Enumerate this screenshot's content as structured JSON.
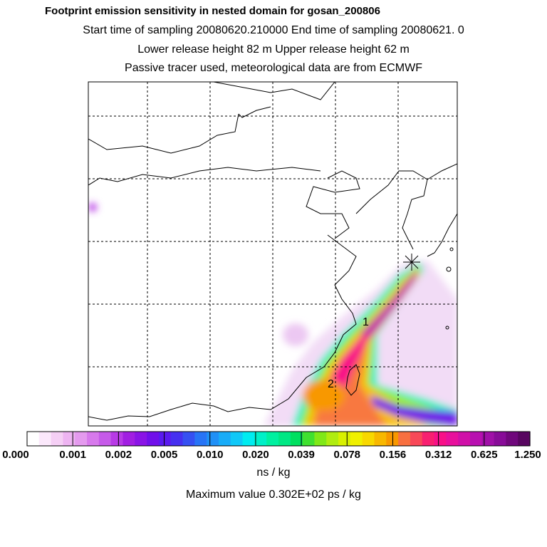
{
  "title": {
    "line1": "Footprint emission sensitivity in nested domain for gosan_200806",
    "line2": "Start time of sampling 20080620.210000      End time of sampling 20080621.      0",
    "line3": "Lower release height   82 m           Upper release height   62 m",
    "line4": "Passive tracer used, meteorological data are from ECMWF"
  },
  "markers": [
    {
      "label": "1",
      "kind": "age-class-marker"
    },
    {
      "label": "2",
      "kind": "age-class-marker"
    }
  ],
  "receptor": {
    "name": "gosan",
    "symbol": "star"
  },
  "colorbar": {
    "ticks": [
      "0.000",
      "0.001",
      "0.002",
      "0.005",
      "0.010",
      "0.020",
      "0.039",
      "0.078",
      "0.156",
      "0.312",
      "0.625",
      "1.250"
    ],
    "colors": [
      "#ffffff",
      "#fbe8fb",
      "#f5cff5",
      "#eeb4f2",
      "#e49aee",
      "#d779ec",
      "#c65ae9",
      "#b83ae6",
      "#a11ee2",
      "#8a14e6",
      "#7010ea",
      "#5a1af0",
      "#4630f0",
      "#3650f2",
      "#2874f6",
      "#2090f6",
      "#18acf8",
      "#10c8f8",
      "#00ecf0",
      "#00f0c8",
      "#00f0a0",
      "#00e884",
      "#00e060",
      "#40e030",
      "#80e818",
      "#b0ec10",
      "#d8f000",
      "#f0f000",
      "#f8d800",
      "#f8b800",
      "#f89800",
      "#f87040",
      "#f84858",
      "#f82070",
      "#f81088",
      "#e8109c",
      "#d010a8",
      "#b810b0",
      "#a010a8",
      "#880c98",
      "#70087c",
      "#580660"
    ],
    "units": "ns / kg"
  },
  "max_value": "Maximum value  0.302E+02 ps / kg",
  "colors": {
    "background": "#ffffff",
    "coastline": "#000000",
    "grid": "#000000"
  }
}
